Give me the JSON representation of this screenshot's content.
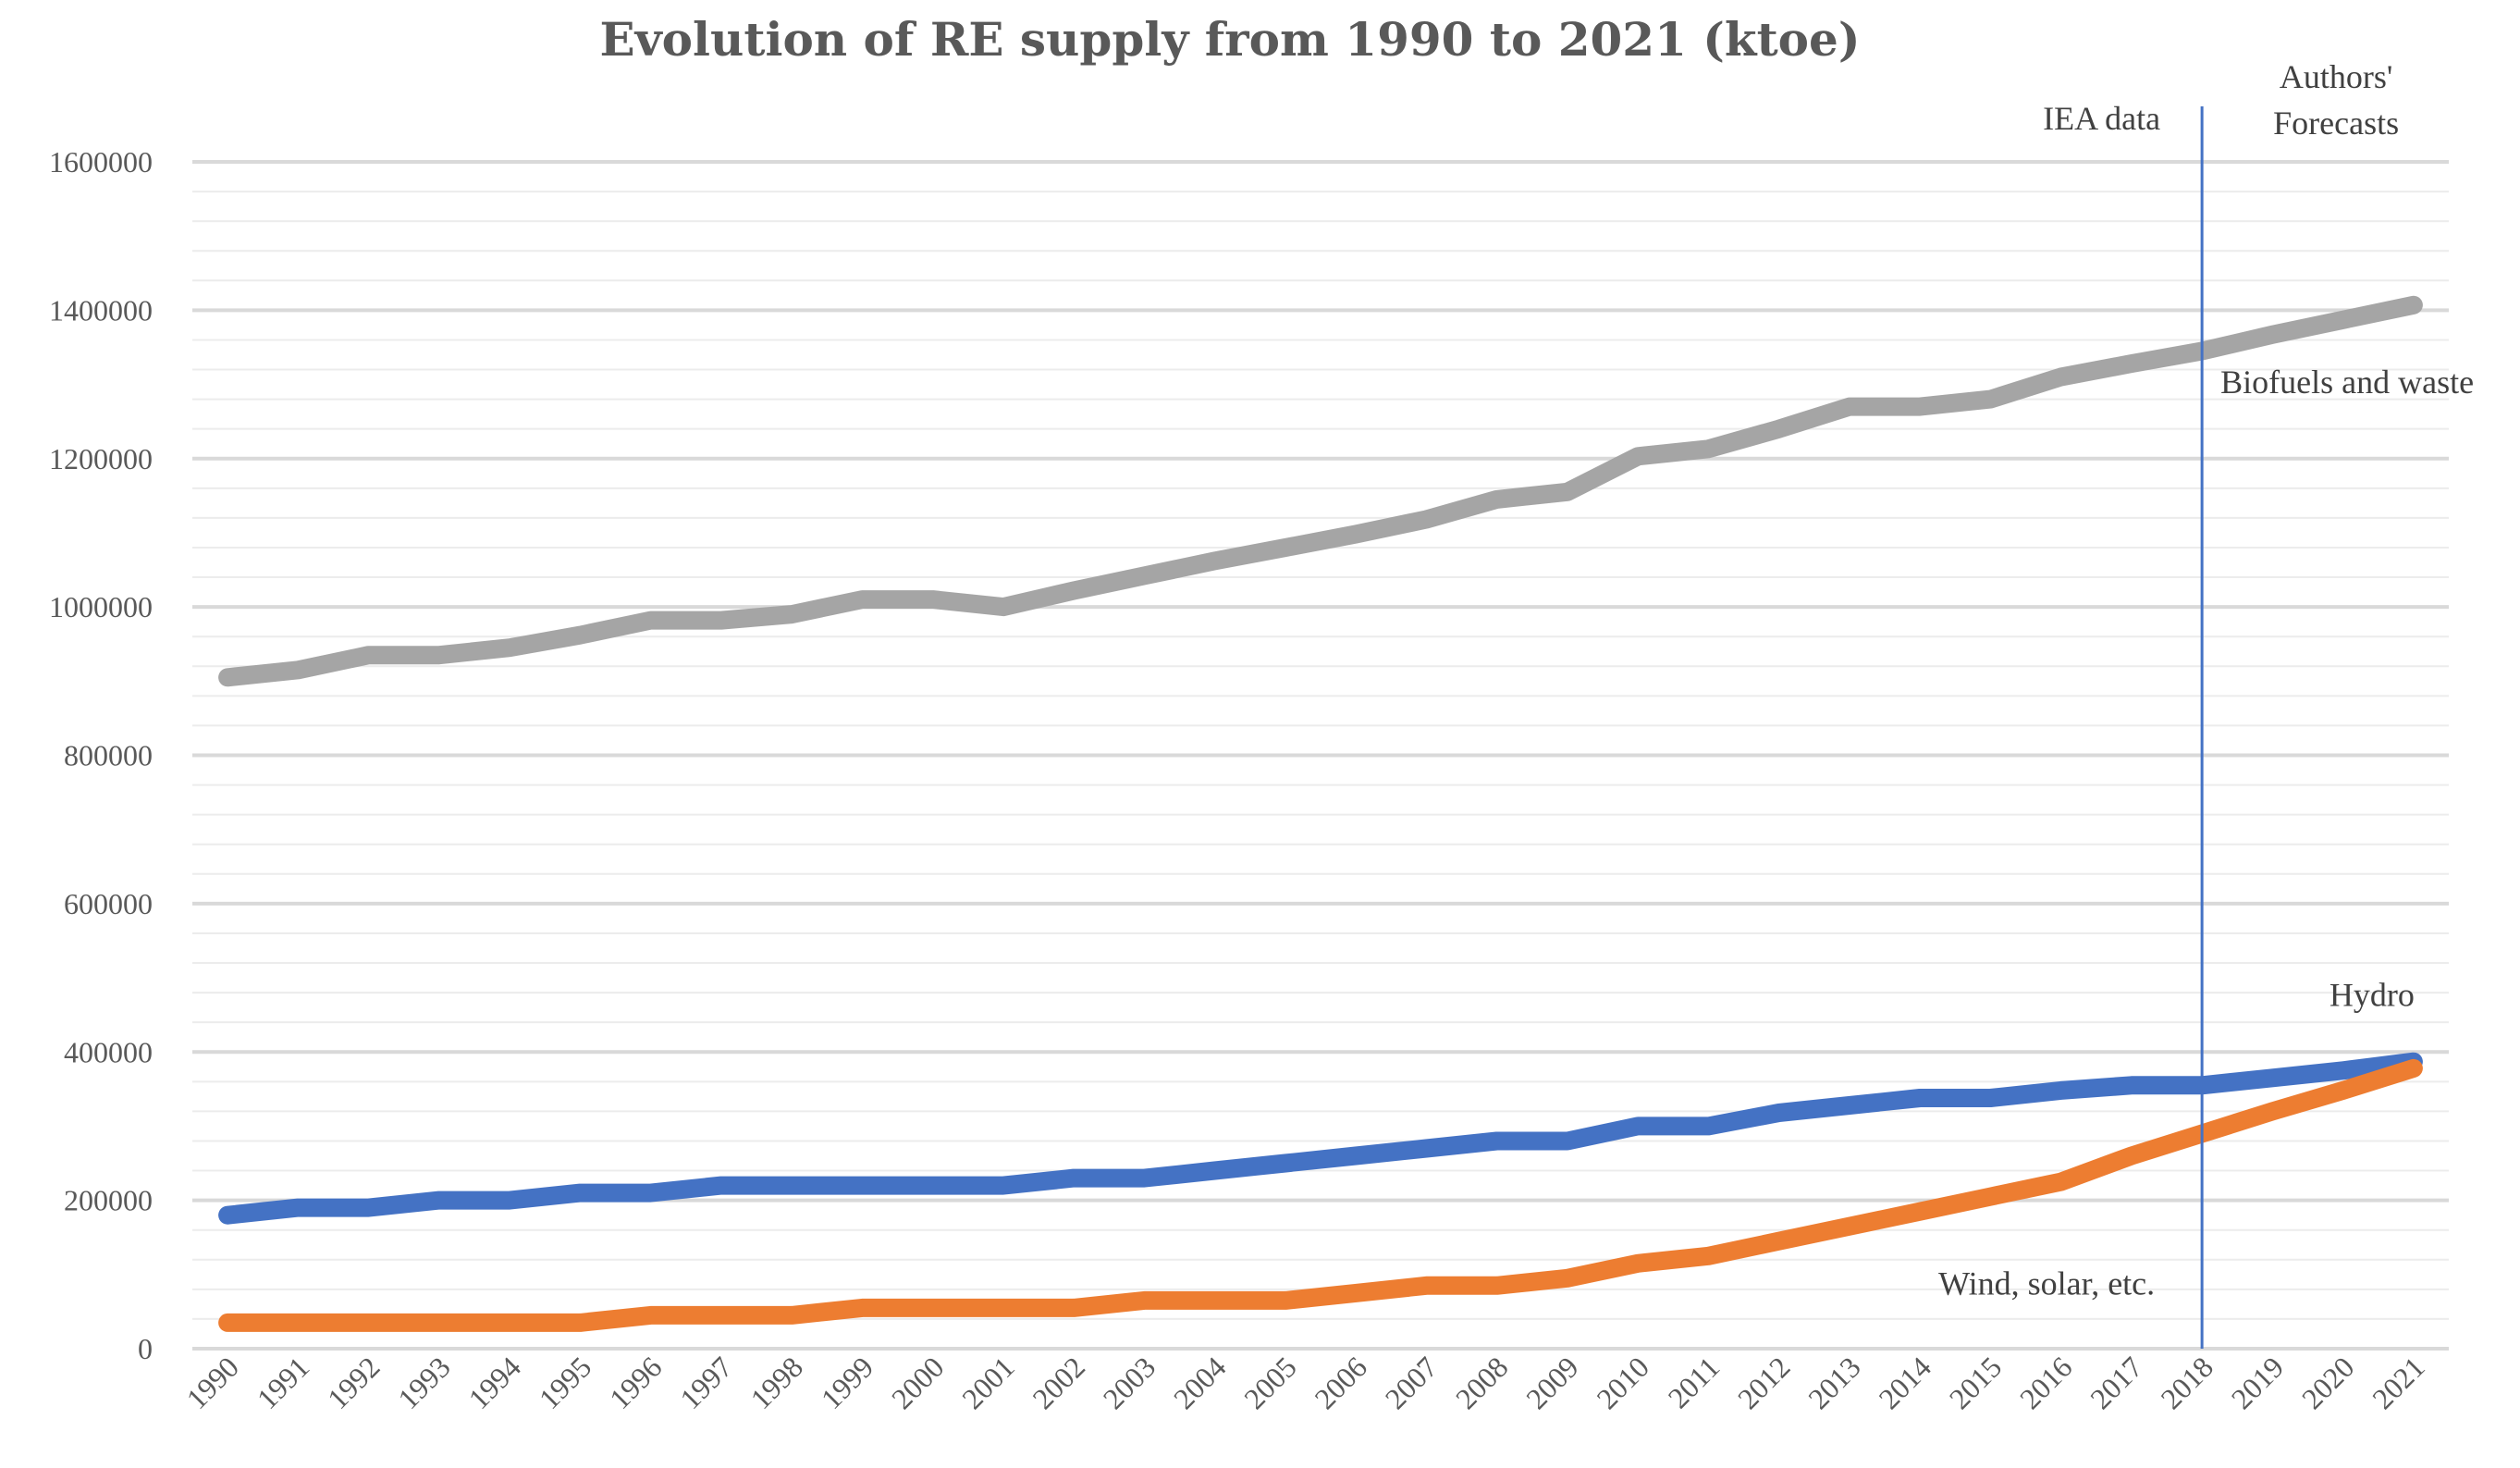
{
  "chart_data": {
    "type": "line",
    "title": "Evolution of RE supply from 1990 to 2021 (ktoe)",
    "xlabel": "",
    "ylabel": "",
    "ylim": [
      0,
      1600000
    ],
    "y_major_step": 200000,
    "y_minor_step": 40000,
    "y_tick_labels": [
      "0",
      "200000",
      "400000",
      "600000",
      "800000",
      "1000000",
      "1200000",
      "1400000",
      "1600000"
    ],
    "categories": [
      "1990",
      "1991",
      "1992",
      "1993",
      "1994",
      "1995",
      "1996",
      "1997",
      "1998",
      "1999",
      "2000",
      "2001",
      "2002",
      "2003",
      "2004",
      "2005",
      "2006",
      "2007",
      "2008",
      "2009",
      "2010",
      "2011",
      "2012",
      "2013",
      "2014",
      "2015",
      "2016",
      "2017",
      "2018",
      "2019",
      "2020",
      "2021"
    ],
    "series": [
      {
        "name": "Biofuels and waste",
        "color": "#A5A5A5",
        "values": [
          905000,
          915000,
          935000,
          935000,
          945000,
          962000,
          982000,
          982000,
          990000,
          1010000,
          1010000,
          1000000,
          1022000,
          1042000,
          1062000,
          1080000,
          1098000,
          1118000,
          1145000,
          1155000,
          1203000,
          1213000,
          1240000,
          1270000,
          1270000,
          1280000,
          1310000,
          1328000,
          1345000,
          1367000,
          1387000,
          1407000
        ]
      },
      {
        "name": "Hydro",
        "color": "#4472C4",
        "values": [
          180000,
          190000,
          190000,
          200000,
          200000,
          210000,
          210000,
          220000,
          220000,
          220000,
          220000,
          220000,
          230000,
          230000,
          240000,
          250000,
          260000,
          270000,
          280000,
          280000,
          300000,
          300000,
          318000,
          328000,
          338000,
          338000,
          348000,
          355000,
          355000,
          365000,
          375000,
          387000
        ]
      },
      {
        "name": "Wind, solar, etc.",
        "color": "#ED7D31",
        "values": [
          35000,
          35000,
          35000,
          35000,
          35000,
          35000,
          45000,
          45000,
          45000,
          55000,
          55000,
          55000,
          55000,
          65000,
          65000,
          65000,
          75000,
          85000,
          85000,
          95000,
          115000,
          125000,
          145000,
          165000,
          185000,
          205000,
          225000,
          260000,
          290000,
          320000,
          348000,
          378000
        ]
      }
    ],
    "divider": {
      "category": "2018",
      "color": "#4472C4"
    },
    "annotations": [
      {
        "text": "IEA data",
        "target": "left-of-divider"
      },
      {
        "text": "Authors'",
        "target": "right-of-divider-line1"
      },
      {
        "text": "Forecasts",
        "target": "right-of-divider-line2"
      },
      {
        "text": "Biofuels and waste",
        "target": "series-0"
      },
      {
        "text": "Hydro",
        "target": "series-1"
      },
      {
        "text": "Wind, solar, etc.",
        "target": "series-2"
      }
    ]
  }
}
